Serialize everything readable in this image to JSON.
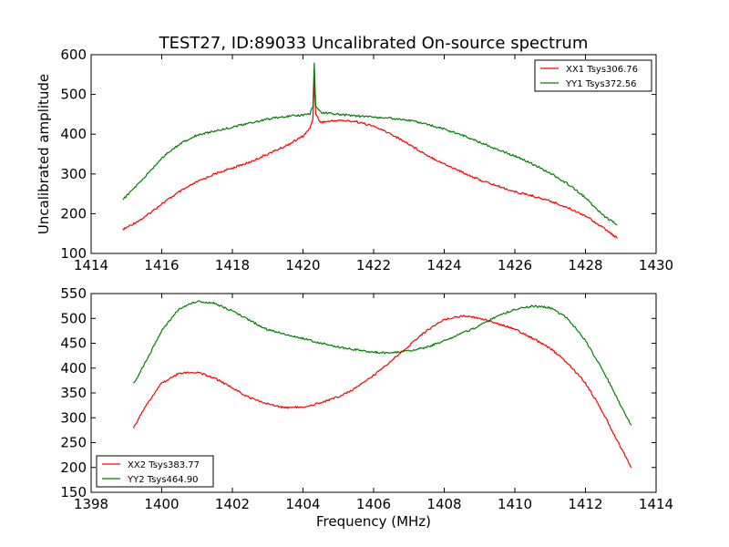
{
  "chart_data": [
    {
      "type": "line",
      "title": "TEST27, ID:89033 Uncalibrated On-source spectrum",
      "xlabel": "",
      "ylabel": "Uncalibrated amplitude",
      "xlim": [
        1414,
        1430
      ],
      "ylim": [
        100,
        600
      ],
      "xticks": [
        1414,
        1416,
        1418,
        1420,
        1422,
        1424,
        1426,
        1428,
        1430
      ],
      "yticks": [
        100,
        200,
        300,
        400,
        500,
        600
      ],
      "grid": false,
      "legend_position": "top-right",
      "series": [
        {
          "name": "XX1 Tsys306.76",
          "color": "#ff0000",
          "points": [
            [
              1414.9,
              160
            ],
            [
              1415.5,
              190
            ],
            [
              1416,
              225
            ],
            [
              1416.5,
              255
            ],
            [
              1417,
              280
            ],
            [
              1417.5,
              300
            ],
            [
              1418,
              315
            ],
            [
              1418.5,
              330
            ],
            [
              1419,
              350
            ],
            [
              1419.5,
              370
            ],
            [
              1420,
              395
            ],
            [
              1420.2,
              415
            ],
            [
              1420.28,
              440
            ],
            [
              1420.32,
              535
            ],
            [
              1420.36,
              450
            ],
            [
              1420.5,
              430
            ],
            [
              1421,
              435
            ],
            [
              1421.5,
              432
            ],
            [
              1422,
              420
            ],
            [
              1422.5,
              400
            ],
            [
              1423,
              375
            ],
            [
              1423.5,
              348
            ],
            [
              1424,
              325
            ],
            [
              1424.5,
              305
            ],
            [
              1425,
              285
            ],
            [
              1425.5,
              270
            ],
            [
              1426,
              255
            ],
            [
              1426.5,
              245
            ],
            [
              1427,
              232
            ],
            [
              1427.5,
              215
            ],
            [
              1428,
              195
            ],
            [
              1428.5,
              165
            ],
            [
              1428.9,
              138
            ]
          ]
        },
        {
          "name": "YY1 Tsys372.56",
          "color": "#008000",
          "points": [
            [
              1414.9,
              235
            ],
            [
              1415.5,
              290
            ],
            [
              1416,
              340
            ],
            [
              1416.5,
              375
            ],
            [
              1417,
              398
            ],
            [
              1417.5,
              408
            ],
            [
              1418,
              418
            ],
            [
              1418.5,
              428
            ],
            [
              1419,
              438
            ],
            [
              1419.5,
              445
            ],
            [
              1420,
              448
            ],
            [
              1420.2,
              452
            ],
            [
              1420.28,
              470
            ],
            [
              1420.32,
              578
            ],
            [
              1420.36,
              470
            ],
            [
              1420.5,
              455
            ],
            [
              1421,
              450
            ],
            [
              1421.5,
              446
            ],
            [
              1422,
              443
            ],
            [
              1422.5,
              440
            ],
            [
              1423,
              435
            ],
            [
              1423.5,
              425
            ],
            [
              1424,
              413
            ],
            [
              1424.5,
              398
            ],
            [
              1425,
              380
            ],
            [
              1425.5,
              362
            ],
            [
              1426,
              345
            ],
            [
              1426.5,
              325
            ],
            [
              1427,
              302
            ],
            [
              1427.5,
              275
            ],
            [
              1428,
              240
            ],
            [
              1428.5,
              195
            ],
            [
              1428.9,
              172
            ]
          ]
        }
      ]
    },
    {
      "type": "line",
      "title": "",
      "xlabel": "Frequency (MHz)",
      "ylabel": "",
      "xlim": [
        1398,
        1414
      ],
      "ylim": [
        150,
        550
      ],
      "xticks": [
        1398,
        1400,
        1402,
        1404,
        1406,
        1408,
        1410,
        1412,
        1414
      ],
      "yticks": [
        150,
        200,
        250,
        300,
        350,
        400,
        450,
        500,
        550
      ],
      "grid": false,
      "legend_position": "bottom-left",
      "series": [
        {
          "name": "XX2 Tsys383.77",
          "color": "#ff0000",
          "points": [
            [
              1399.2,
              280
            ],
            [
              1399.6,
              330
            ],
            [
              1400,
              370
            ],
            [
              1400.5,
              390
            ],
            [
              1401,
              392
            ],
            [
              1401.5,
              380
            ],
            [
              1402,
              360
            ],
            [
              1402.5,
              340
            ],
            [
              1403,
              328
            ],
            [
              1403.5,
              320
            ],
            [
              1404,
              322
            ],
            [
              1404.5,
              330
            ],
            [
              1405,
              342
            ],
            [
              1405.5,
              360
            ],
            [
              1406,
              385
            ],
            [
              1406.5,
              415
            ],
            [
              1407,
              445
            ],
            [
              1407.5,
              475
            ],
            [
              1408,
              498
            ],
            [
              1408.5,
              505
            ],
            [
              1409,
              500
            ],
            [
              1409.5,
              490
            ],
            [
              1410,
              478
            ],
            [
              1410.5,
              460
            ],
            [
              1411,
              440
            ],
            [
              1411.5,
              410
            ],
            [
              1412,
              370
            ],
            [
              1412.5,
              310
            ],
            [
              1413,
              240
            ],
            [
              1413.3,
              200
            ]
          ]
        },
        {
          "name": "YY2 Tsys464.90",
          "color": "#008000",
          "points": [
            [
              1399.2,
              368
            ],
            [
              1399.6,
              420
            ],
            [
              1400,
              475
            ],
            [
              1400.5,
              520
            ],
            [
              1401,
              535
            ],
            [
              1401.5,
              530
            ],
            [
              1402,
              515
            ],
            [
              1402.5,
              495
            ],
            [
              1403,
              478
            ],
            [
              1403.5,
              468
            ],
            [
              1404,
              460
            ],
            [
              1404.5,
              450
            ],
            [
              1405,
              442
            ],
            [
              1405.5,
              437
            ],
            [
              1406,
              432
            ],
            [
              1406.5,
              430
            ],
            [
              1407,
              435
            ],
            [
              1407.5,
              442
            ],
            [
              1408,
              455
            ],
            [
              1408.5,
              470
            ],
            [
              1409,
              485
            ],
            [
              1409.5,
              505
            ],
            [
              1410,
              518
            ],
            [
              1410.5,
              525
            ],
            [
              1411,
              522
            ],
            [
              1411.5,
              500
            ],
            [
              1412,
              455
            ],
            [
              1412.5,
              395
            ],
            [
              1413,
              325
            ],
            [
              1413.3,
              285
            ]
          ]
        }
      ]
    }
  ]
}
